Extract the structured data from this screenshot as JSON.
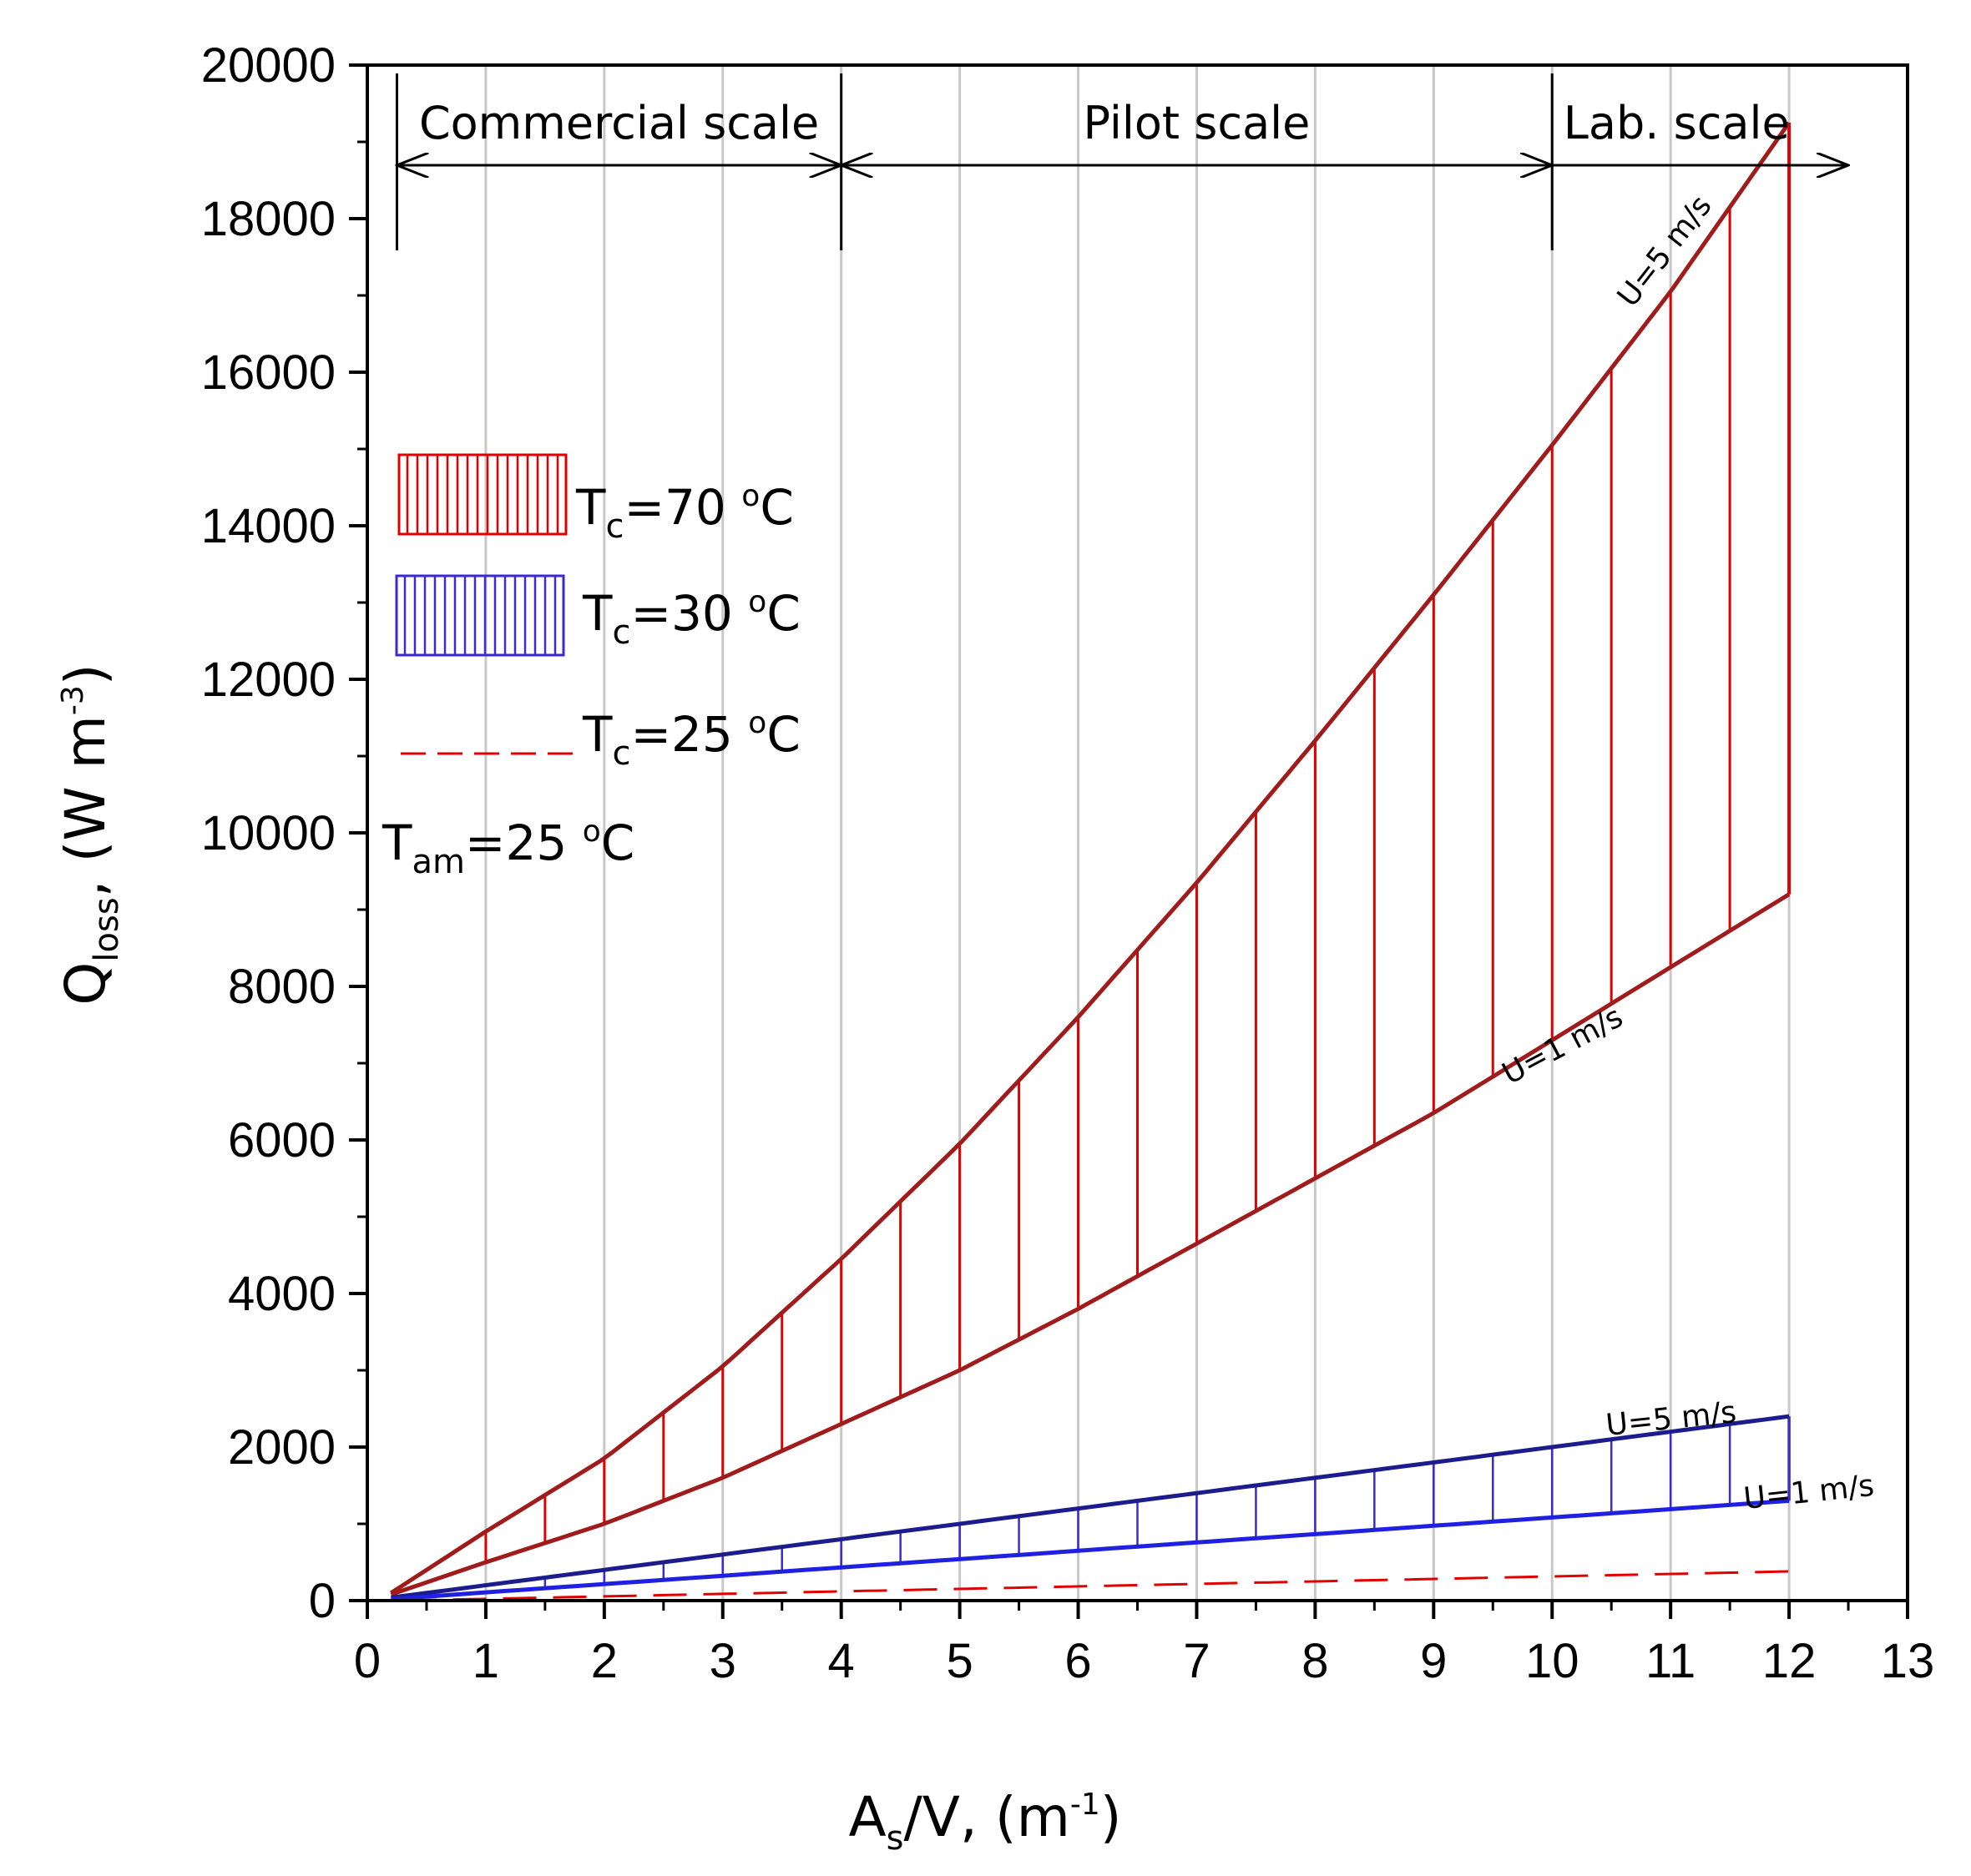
{
  "chart_data": {
    "type": "line",
    "x_range": [
      0,
      13
    ],
    "y_range": [
      0,
      20000
    ],
    "x_ticks": [
      "0",
      "1",
      "2",
      "3",
      "4",
      "5",
      "6",
      "7",
      "8",
      "9",
      "10",
      "11",
      "12",
      "13"
    ],
    "y_ticks": [
      "0",
      "2000",
      "4000",
      "6000",
      "8000",
      "10000",
      "12000",
      "14000",
      "16000",
      "18000",
      "20000"
    ],
    "xlabel": {
      "main": "A",
      "sub": "s",
      "mid": "/V, (m",
      "sup": "-1",
      "end": ")"
    },
    "ylabel": {
      "main": "Q",
      "sub": "loss",
      "mid": ", (W m",
      "sup": "-3",
      "end": ")"
    },
    "grid": "vertical lines at integer x",
    "scale_regions": [
      {
        "label": "Commercial scale",
        "from": 0.25,
        "to": 4
      },
      {
        "label": "Pilot scale",
        "from": 4,
        "to": 10
      },
      {
        "label": "Lab. scale",
        "from": 10,
        "to": 12.5
      }
    ],
    "legend": {
      "t70": {
        "main": "T",
        "sub": "c",
        "rest": "=70 ",
        "sup": "o",
        "unit": "C"
      },
      "t30": {
        "main": "T",
        "sub": "c",
        "rest": "=30 ",
        "sup": "o",
        "unit": "C"
      },
      "t25": {
        "main": "T",
        "sub": "c",
        "rest": "=25 ",
        "sup": "o",
        "unit": "C"
      },
      "tam": {
        "main": "T",
        "sub": "am",
        "rest": "=25 ",
        "sup": "o",
        "unit": "C"
      }
    },
    "series": [
      {
        "name": "Tc=70 oC, U=5 m/s",
        "color": "#a01c1c",
        "x": [
          0.2,
          1,
          2,
          3,
          4,
          5,
          6,
          7,
          8,
          9,
          10,
          11,
          12
        ],
        "y": [
          100,
          900,
          1850,
          3050,
          4450,
          5950,
          7600,
          9350,
          11200,
          13100,
          15050,
          17050,
          19250
        ]
      },
      {
        "name": "Tc=70 oC, U=1 m/s",
        "color": "#a01c1c",
        "x": [
          0.2,
          1,
          2,
          3,
          4,
          5,
          6,
          7,
          8,
          9,
          10,
          11,
          12
        ],
        "y": [
          80,
          500,
          1000,
          1600,
          2300,
          3000,
          3800,
          4650,
          5500,
          6350,
          7300,
          8250,
          9200
        ]
      },
      {
        "name": "Tc=30 oC, U=5 m/s",
        "color": "#1c1c8c",
        "x": [
          0.2,
          12
        ],
        "y": [
          40,
          2400
        ]
      },
      {
        "name": "Tc=30 oC, U=1 m/s",
        "color": "#2020e0",
        "x": [
          0.2,
          12
        ],
        "y": [
          20,
          1300
        ]
      },
      {
        "name": "Tc=25 oC",
        "color": "#e00000",
        "dash": true,
        "x": [
          0.3,
          12
        ],
        "y": [
          0,
          380
        ]
      }
    ],
    "annotations": [
      {
        "text": "U=5 m/s",
        "series": "Tc=70 oC"
      },
      {
        "text": "U=1 m/s",
        "series": "Tc=70 oC"
      },
      {
        "text": "U=5 m/s",
        "series": "Tc=30 oC"
      },
      {
        "text": "U=1 m/s",
        "series": "Tc=30 oC"
      }
    ],
    "colors": {
      "red_fill": "#e00000",
      "red_line": "#a01c1c",
      "blue_fill": "#3a2ad0",
      "blue_dark": "#1c1c8c",
      "blue_light": "#2020e0",
      "grid": "#c8c8c8"
    }
  }
}
